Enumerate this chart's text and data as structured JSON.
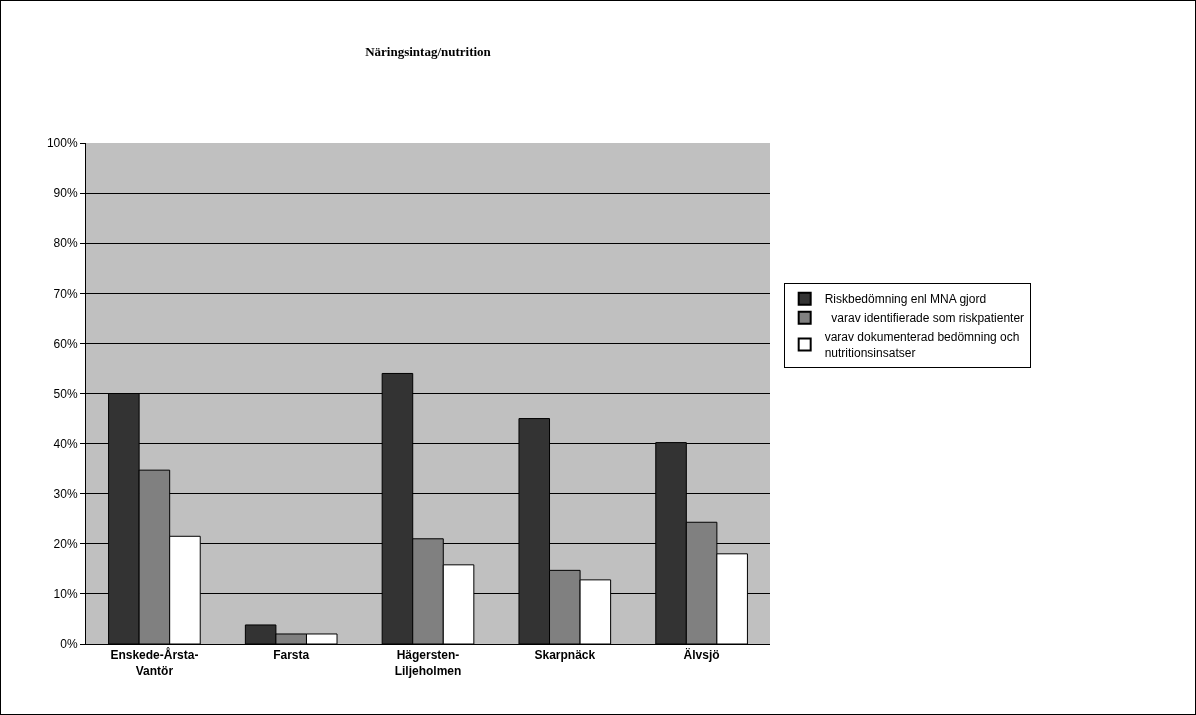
{
  "chart_data": {
    "type": "bar",
    "title": "Näringsintag/nutrition",
    "categories": [
      "Enskede-Årsta-\nVantör",
      "Farsta",
      "Hägersten-\nLiljeholmen",
      "Skarpnäck",
      "Älvsjö"
    ],
    "series": [
      {
        "name": "Riskbedömning enl MNA gjord",
        "color": "#333333",
        "values": [
          50,
          3.8,
          54,
          45,
          40.2
        ]
      },
      {
        "name": "  varav identifierade som riskpatienter",
        "color": "#808080",
        "values": [
          34.7,
          2,
          21,
          14.7,
          24.3
        ]
      },
      {
        "name": "varav dokumenterad bedömning och\nnutritionsinsatser",
        "color": "#ffffff",
        "values": [
          21.5,
          2,
          15.8,
          12.8,
          18
        ]
      }
    ],
    "ylim": [
      0,
      100
    ],
    "yticks": [
      {
        "value": 0,
        "label": "0%"
      },
      {
        "value": 10,
        "label": "10%"
      },
      {
        "value": 20,
        "label": "20%"
      },
      {
        "value": 30,
        "label": "30%"
      },
      {
        "value": 40,
        "label": "40%"
      },
      {
        "value": 50,
        "label": "50%"
      },
      {
        "value": 60,
        "label": "60%"
      },
      {
        "value": 70,
        "label": "70%"
      },
      {
        "value": 80,
        "label": "80%"
      },
      {
        "value": 90,
        "label": "90%"
      },
      {
        "value": 100,
        "label": "100%"
      }
    ],
    "grid": "y",
    "legend": "right"
  }
}
